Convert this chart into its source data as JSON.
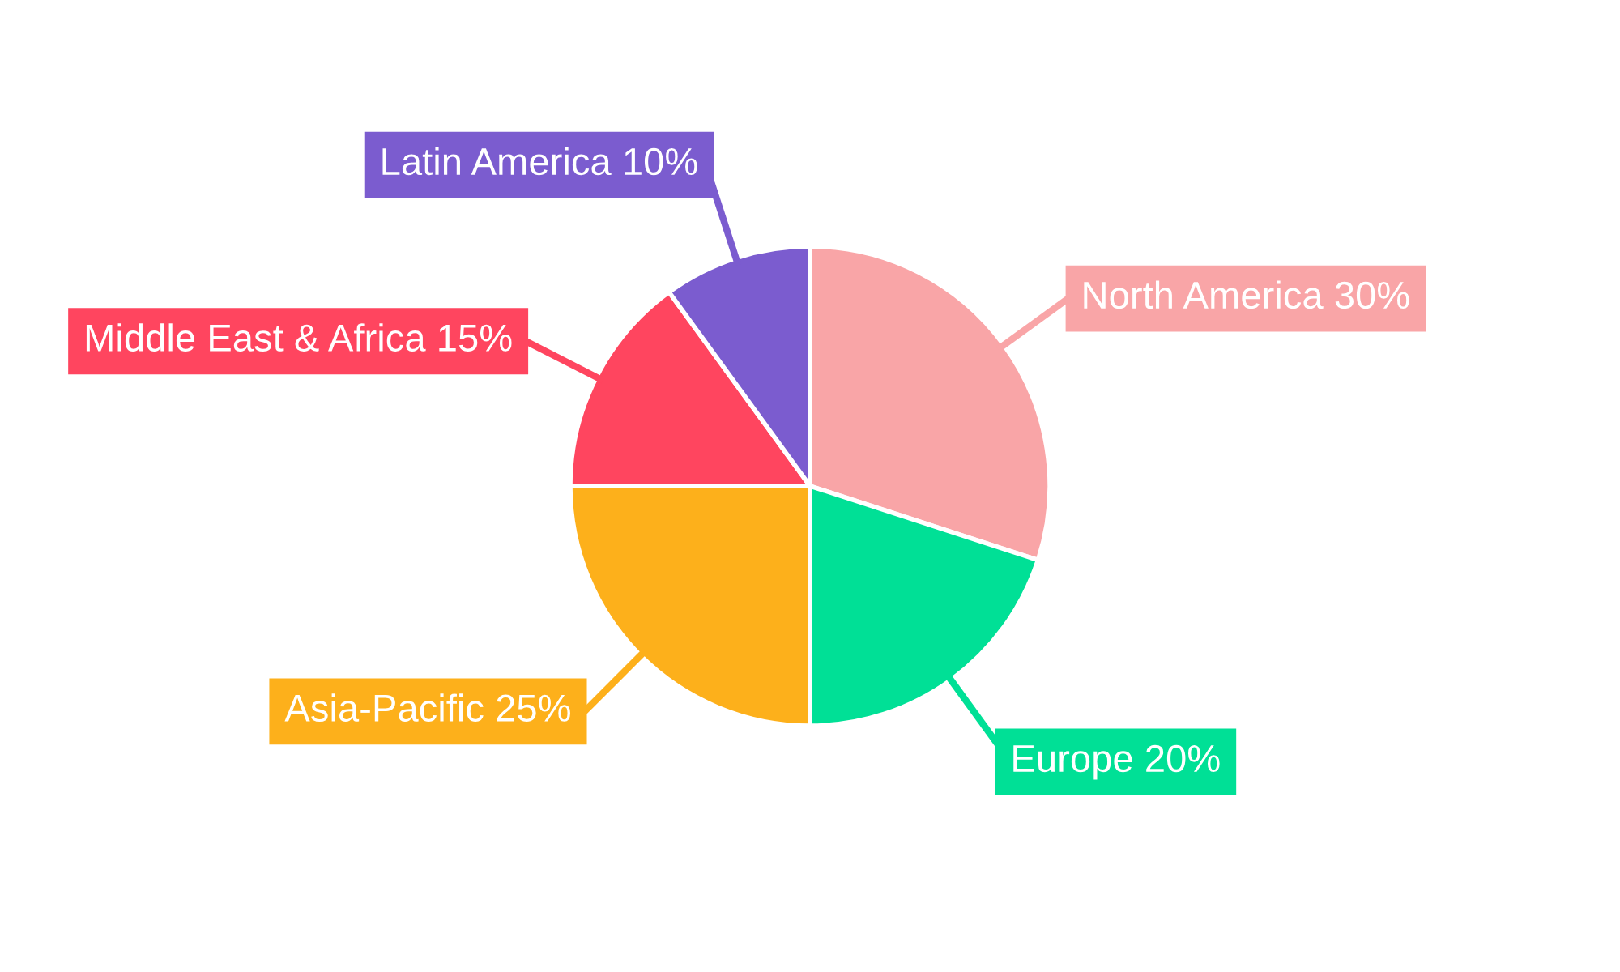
{
  "chart_data": {
    "type": "pie",
    "categories": [
      "North America",
      "Europe",
      "Asia-Pacific",
      "Middle East & Africa",
      "Latin America"
    ],
    "values": [
      30,
      20,
      25,
      15,
      10
    ],
    "value_labels": [
      "30%",
      "20%",
      "25%",
      "15%",
      "10%"
    ],
    "colors": [
      "#f9a5a7",
      "#00e096",
      "#fdb01b",
      "#ff455f",
      "#7b5ccf"
    ],
    "legend": false
  }
}
